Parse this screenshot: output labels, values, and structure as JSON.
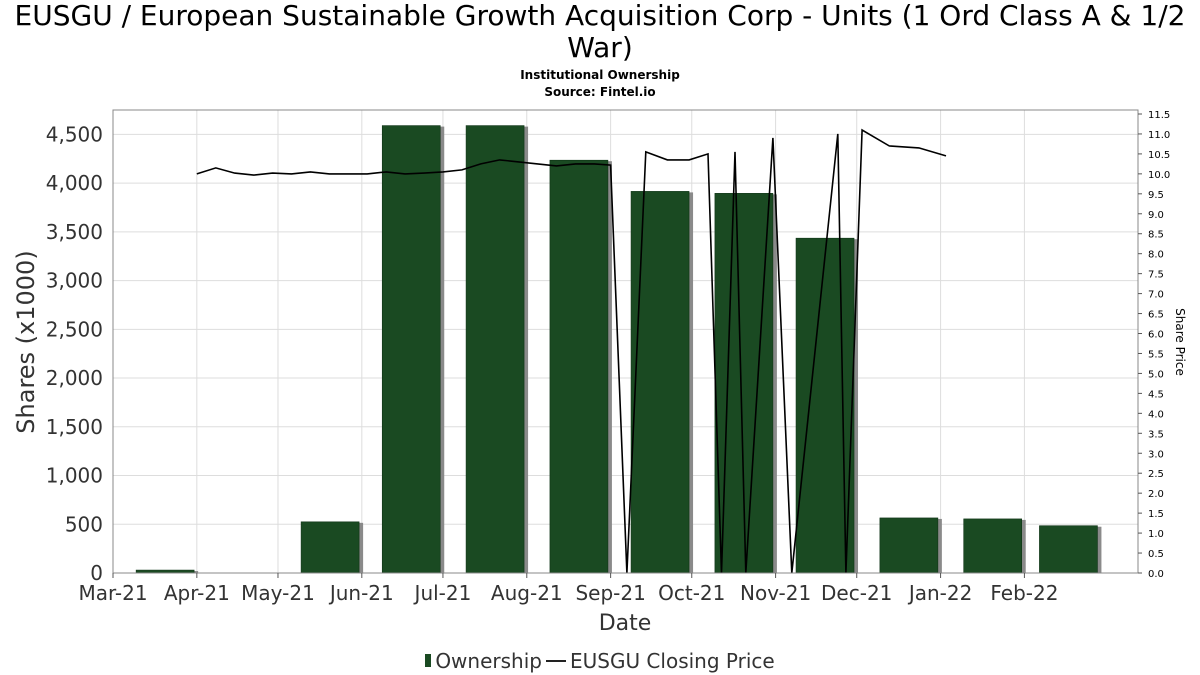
{
  "header": {
    "title_line1": "EUSGU / European Sustainable Growth Acquisition Corp - Units (1 Ord Class A & 1/2",
    "title_line2": "War)",
    "subtitle1": "Institutional Ownership",
    "subtitle2": "Source: Fintel.io"
  },
  "legend": {
    "ownership": "Ownership",
    "price": "EUSGU Closing Price"
  },
  "colors": {
    "bar": "#1a4a22",
    "bar_shadow": "#8a8a8a",
    "line": "#000000",
    "grid": "#dddddd"
  },
  "chart_data": {
    "type": "bar",
    "xlabel": "Date",
    "ylabel": "Shares (x1000)",
    "y2label": "Share Price",
    "ylim": [
      0,
      4750
    ],
    "y2lim": [
      0,
      11.6
    ],
    "y_ticks": [
      0,
      500,
      1000,
      1500,
      2000,
      2500,
      3000,
      3500,
      4000,
      4500
    ],
    "y_tick_labels": [
      "0",
      "500",
      "1,000",
      "1,500",
      "2,000",
      "2,500",
      "3,000",
      "3,500",
      "4,000",
      "4,500"
    ],
    "y2_ticks": [
      0.0,
      0.5,
      1.0,
      1.5,
      2.0,
      2.5,
      3.0,
      3.5,
      4.0,
      4.5,
      5.0,
      5.5,
      6.0,
      6.5,
      7.0,
      7.5,
      8.0,
      8.5,
      9.0,
      9.5,
      10.0,
      10.5,
      11.0,
      11.5
    ],
    "y2_tick_labels": [
      "0.0",
      "0.5",
      "1.0",
      "1.5",
      "2.0",
      "2.5",
      "3.0",
      "3.5",
      "4.0",
      "4.5",
      "5.0",
      "5.5",
      "6.0",
      "6.5",
      "7.0",
      "7.5",
      "8.0",
      "8.5",
      "9.0",
      "9.5",
      "10.0",
      "10.5",
      "11.0",
      "11.5"
    ],
    "categories": [
      "Mar-21",
      "Apr-21",
      "May-21",
      "Jun-21",
      "Jul-21",
      "Aug-21",
      "Sep-21",
      "Oct-21",
      "Nov-21",
      "Dec-21",
      "Jan-22",
      "Feb-22"
    ],
    "grid": true,
    "legend_position": "bottom",
    "series": [
      {
        "name": "Ownership",
        "type": "bar",
        "x": [
          "2021-03-31",
          "2021-05-31",
          "2021-06-30",
          "2021-07-31",
          "2021-08-31",
          "2021-09-30",
          "2021-10-31",
          "2021-11-30",
          "2021-12-31",
          "2022-01-31",
          "2022-02-28"
        ],
        "values": [
          30,
          525,
          4590,
          4590,
          4235,
          3915,
          3895,
          3435,
          565,
          555,
          485
        ]
      },
      {
        "name": "EUSGU Closing Price",
        "type": "line",
        "points": [
          [
            "2021-04-01",
            10.0
          ],
          [
            "2021-04-08",
            10.15
          ],
          [
            "2021-04-15",
            10.02
          ],
          [
            "2021-04-22",
            9.97
          ],
          [
            "2021-04-29",
            10.02
          ],
          [
            "2021-05-06",
            10.0
          ],
          [
            "2021-05-13",
            10.05
          ],
          [
            "2021-05-20",
            10.0
          ],
          [
            "2021-05-27",
            10.0
          ],
          [
            "2021-06-03",
            10.0
          ],
          [
            "2021-06-10",
            10.05
          ],
          [
            "2021-06-17",
            10.0
          ],
          [
            "2021-06-24",
            10.02
          ],
          [
            "2021-07-01",
            10.05
          ],
          [
            "2021-07-08",
            10.1
          ],
          [
            "2021-07-15",
            10.25
          ],
          [
            "2021-07-22",
            10.35
          ],
          [
            "2021-07-29",
            10.3
          ],
          [
            "2021-08-05",
            10.25
          ],
          [
            "2021-08-12",
            10.2
          ],
          [
            "2021-08-19",
            10.25
          ],
          [
            "2021-08-26",
            10.25
          ],
          [
            "2021-09-01",
            10.22
          ],
          [
            "2021-09-07",
            0.0
          ],
          [
            "2021-09-14",
            10.55
          ],
          [
            "2021-09-22",
            10.35
          ],
          [
            "2021-09-30",
            10.35
          ],
          [
            "2021-10-07",
            10.5
          ],
          [
            "2021-10-12",
            0.0
          ],
          [
            "2021-10-17",
            10.55
          ],
          [
            "2021-10-21",
            0.0
          ],
          [
            "2021-10-31",
            10.9
          ],
          [
            "2021-11-07",
            0.0
          ],
          [
            "2021-11-24",
            11.0
          ],
          [
            "2021-11-27",
            0.0
          ],
          [
            "2021-12-03",
            11.1
          ],
          [
            "2021-12-13",
            10.7
          ],
          [
            "2021-12-24",
            10.65
          ],
          [
            "2022-01-03",
            10.45
          ]
        ]
      }
    ]
  }
}
